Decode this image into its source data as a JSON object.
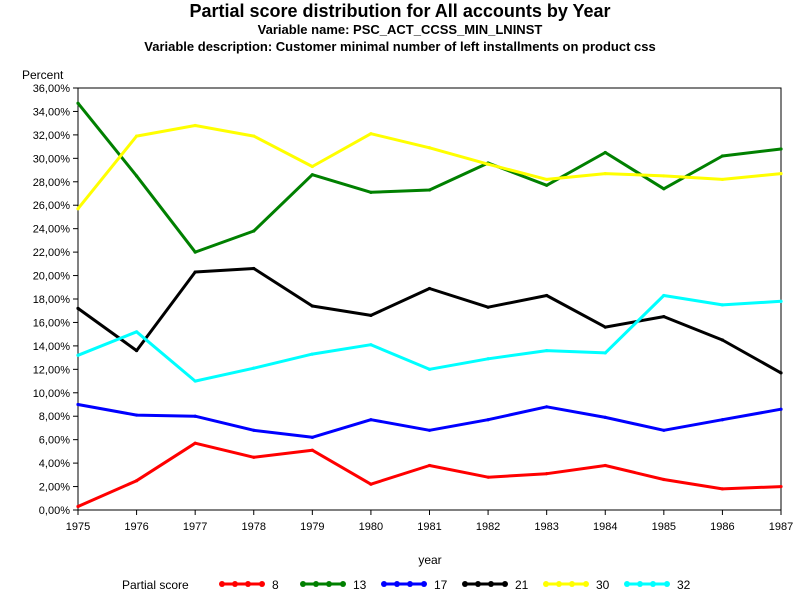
{
  "titles": {
    "main": "Partial score distribution for All accounts by Year",
    "variable_name": "Variable name: PSC_ACT_CCSS_MIN_LNINST",
    "variable_description": "Variable description: Customer minimal number of left installments on product css"
  },
  "chart_data": {
    "type": "line",
    "title": "Partial score distribution for All accounts by Year",
    "xlabel": "year",
    "ylabel": "Percent",
    "x": [
      "1975",
      "1976",
      "1977",
      "1978",
      "1979",
      "1980",
      "1981",
      "1982",
      "1983",
      "1984",
      "1985",
      "1986",
      "1987"
    ],
    "ylim": [
      0,
      36
    ],
    "yticks": [
      "0,00%",
      "2,00%",
      "4,00%",
      "6,00%",
      "8,00%",
      "10,00%",
      "12,00%",
      "14,00%",
      "16,00%",
      "18,00%",
      "20,00%",
      "22,00%",
      "24,00%",
      "26,00%",
      "28,00%",
      "30,00%",
      "32,00%",
      "34,00%",
      "36,00%"
    ],
    "legend_title": "Partial score",
    "legend_position": "bottom",
    "grid": false,
    "series": [
      {
        "name": "8",
        "color": "#ff0000",
        "values": [
          0.3,
          2.5,
          5.7,
          4.5,
          5.1,
          2.2,
          3.8,
          2.8,
          3.1,
          3.8,
          2.6,
          1.8,
          2.0
        ]
      },
      {
        "name": "13",
        "color": "#008000",
        "values": [
          34.7,
          28.5,
          22.0,
          23.8,
          28.6,
          27.1,
          27.3,
          29.6,
          27.7,
          30.5,
          27.4,
          30.2,
          30.8
        ]
      },
      {
        "name": "17",
        "color": "#0000ff",
        "values": [
          9.0,
          8.1,
          8.0,
          6.8,
          6.2,
          7.7,
          6.8,
          7.7,
          8.8,
          7.9,
          6.8,
          7.7,
          8.6
        ]
      },
      {
        "name": "21",
        "color": "#000000",
        "values": [
          17.2,
          13.6,
          20.3,
          20.6,
          17.4,
          16.6,
          18.9,
          17.3,
          18.3,
          15.6,
          16.5,
          14.5,
          11.7
        ]
      },
      {
        "name": "30",
        "color": "#ffff00",
        "values": [
          25.7,
          31.9,
          32.8,
          31.9,
          29.3,
          32.1,
          30.9,
          29.5,
          28.2,
          28.7,
          28.5,
          28.2,
          28.7
        ]
      },
      {
        "name": "32",
        "color": "#00ffff",
        "values": [
          13.2,
          15.2,
          11.0,
          12.1,
          13.3,
          14.1,
          12.0,
          12.9,
          13.6,
          13.4,
          18.3,
          17.5,
          17.8
        ]
      }
    ]
  }
}
